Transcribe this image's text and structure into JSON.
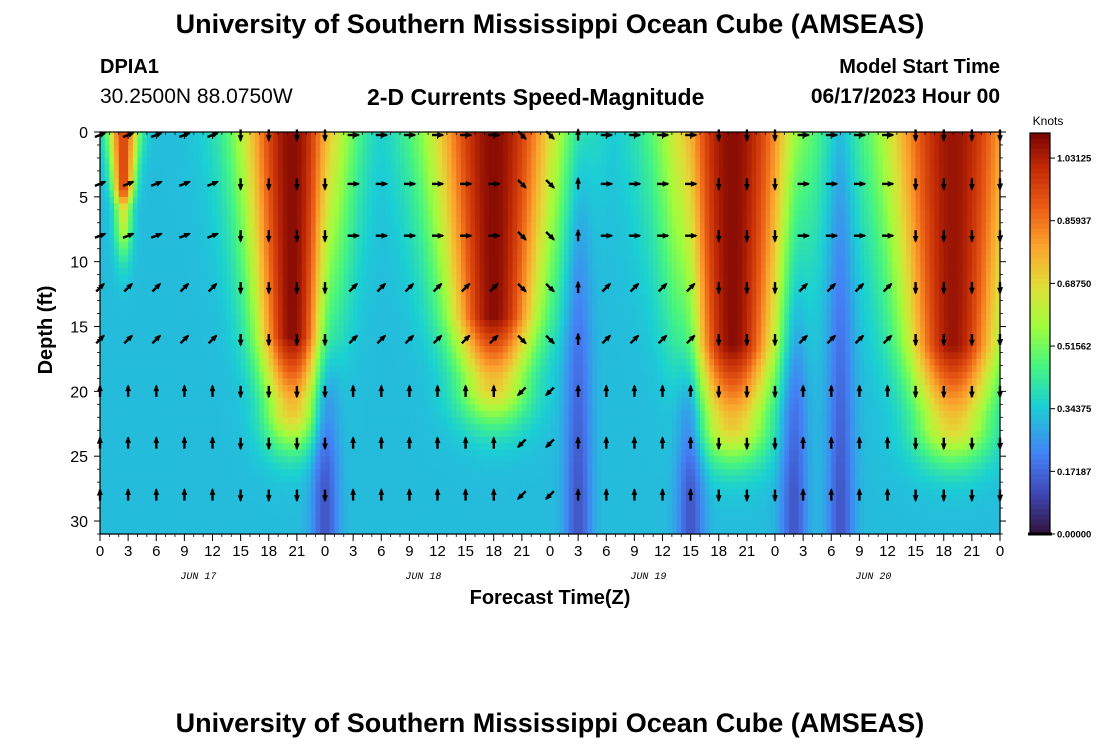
{
  "header": {
    "title": "University of Southern Mississippi Ocean Cube (AMSEAS)",
    "station_id": "DPIA1",
    "station_coords": "30.2500N  88.0750W",
    "subtitle": "2-D Currents Speed-Magnitude",
    "model_start_label": "Model Start Time",
    "model_start_value": "06/17/2023 Hour 00"
  },
  "footer": {
    "title_repeat": "University of Southern Mississippi Ocean Cube (AMSEAS)"
  },
  "chart_data": {
    "type": "heatmap",
    "title": "2-D Currents Speed-Magnitude",
    "xlabel": "Forecast Time(Z)",
    "ylabel": "Depth (ft)",
    "x_range_hours": [
      0,
      96
    ],
    "y_range_ft": [
      0,
      31
    ],
    "y_ticks": [
      0,
      5,
      10,
      15,
      20,
      25,
      30
    ],
    "x_ticks": [
      "0",
      "3",
      "6",
      "9",
      "12",
      "15",
      "18",
      "21",
      "0",
      "3",
      "6",
      "9",
      "12",
      "15",
      "18",
      "21",
      "0",
      "3",
      "6",
      "9",
      "12",
      "15",
      "18",
      "21",
      "0",
      "3",
      "6",
      "9",
      "12",
      "15",
      "18",
      "21",
      "0"
    ],
    "date_labels": [
      {
        "label": "JUN 17",
        "hour": 10.5
      },
      {
        "label": "JUN 18",
        "hour": 34.5
      },
      {
        "label": "JUN 19",
        "hour": 58.5
      },
      {
        "label": "JUN 20",
        "hour": 82.5
      }
    ],
    "colorbar": {
      "unit": "Knots",
      "min": 0.0,
      "max": 1.1,
      "tick_labels": [
        "0.00000",
        "0.17187",
        "0.34375",
        "0.51562",
        "0.68750",
        "0.85937",
        "1.03125"
      ],
      "tick_values": [
        0.0,
        0.17187,
        0.34375,
        0.51562,
        0.6875,
        0.85937,
        1.03125
      ]
    },
    "speed_model": {
      "description": "Tidal-cycle speed field; peaks (knots) near surface, decaying with depth",
      "peaks": [
        {
          "center_hour": 2.5,
          "width_hours": 1.6,
          "depth_extent_ft": 6,
          "amplitude": 0.95
        },
        {
          "center_hour": 20.5,
          "width_hours": 5.5,
          "depth_extent_ft": 21,
          "amplitude": 1.08
        },
        {
          "center_hour": 42.0,
          "width_hours": 7.0,
          "depth_extent_ft": 19,
          "amplitude": 1.08
        },
        {
          "center_hour": 67.5,
          "width_hours": 7.0,
          "depth_extent_ft": 22,
          "amplitude": 1.08
        },
        {
          "center_hour": 91.0,
          "width_hours": 7.5,
          "depth_extent_ft": 22,
          "amplitude": 1.06
        }
      ],
      "minima_hours": [
        24.0,
        51.0,
        63.0,
        74.0,
        79.0
      ]
    },
    "vector_rows_ft": [
      0,
      4,
      8,
      12,
      16,
      20,
      24,
      28
    ],
    "vector_columns_hours": [
      0,
      3,
      6,
      9,
      12,
      15,
      18,
      21,
      24,
      27,
      30,
      33,
      36,
      39,
      42,
      45,
      48,
      51,
      54,
      57,
      60,
      63,
      66,
      69,
      72,
      75,
      78,
      81,
      84,
      87,
      90,
      93,
      96
    ],
    "vector_flow_phases": [
      {
        "from_hour": 0,
        "to_hour": 12.5,
        "direction": "east/northeast",
        "deep_direction": "north"
      },
      {
        "from_hour": 12.5,
        "to_hour": 25,
        "direction": "south",
        "deep_direction": "south"
      },
      {
        "from_hour": 25,
        "to_hour": 45,
        "direction": "east",
        "deep_direction": "north"
      },
      {
        "from_hour": 45,
        "to_hour": 48.5,
        "direction": "southeast",
        "deep_direction": "southwest"
      },
      {
        "from_hour": 48.5,
        "to_hour": 53,
        "direction": "north",
        "deep_direction": "north"
      },
      {
        "from_hour": 53,
        "to_hour": 65,
        "direction": "east",
        "deep_direction": "north"
      },
      {
        "from_hour": 65,
        "to_hour": 75,
        "direction": "south",
        "deep_direction": "south"
      },
      {
        "from_hour": 75,
        "to_hour": 87,
        "direction": "east",
        "deep_direction": "north"
      },
      {
        "from_hour": 87,
        "to_hour": 96,
        "direction": "south",
        "deep_direction": "south"
      }
    ]
  }
}
